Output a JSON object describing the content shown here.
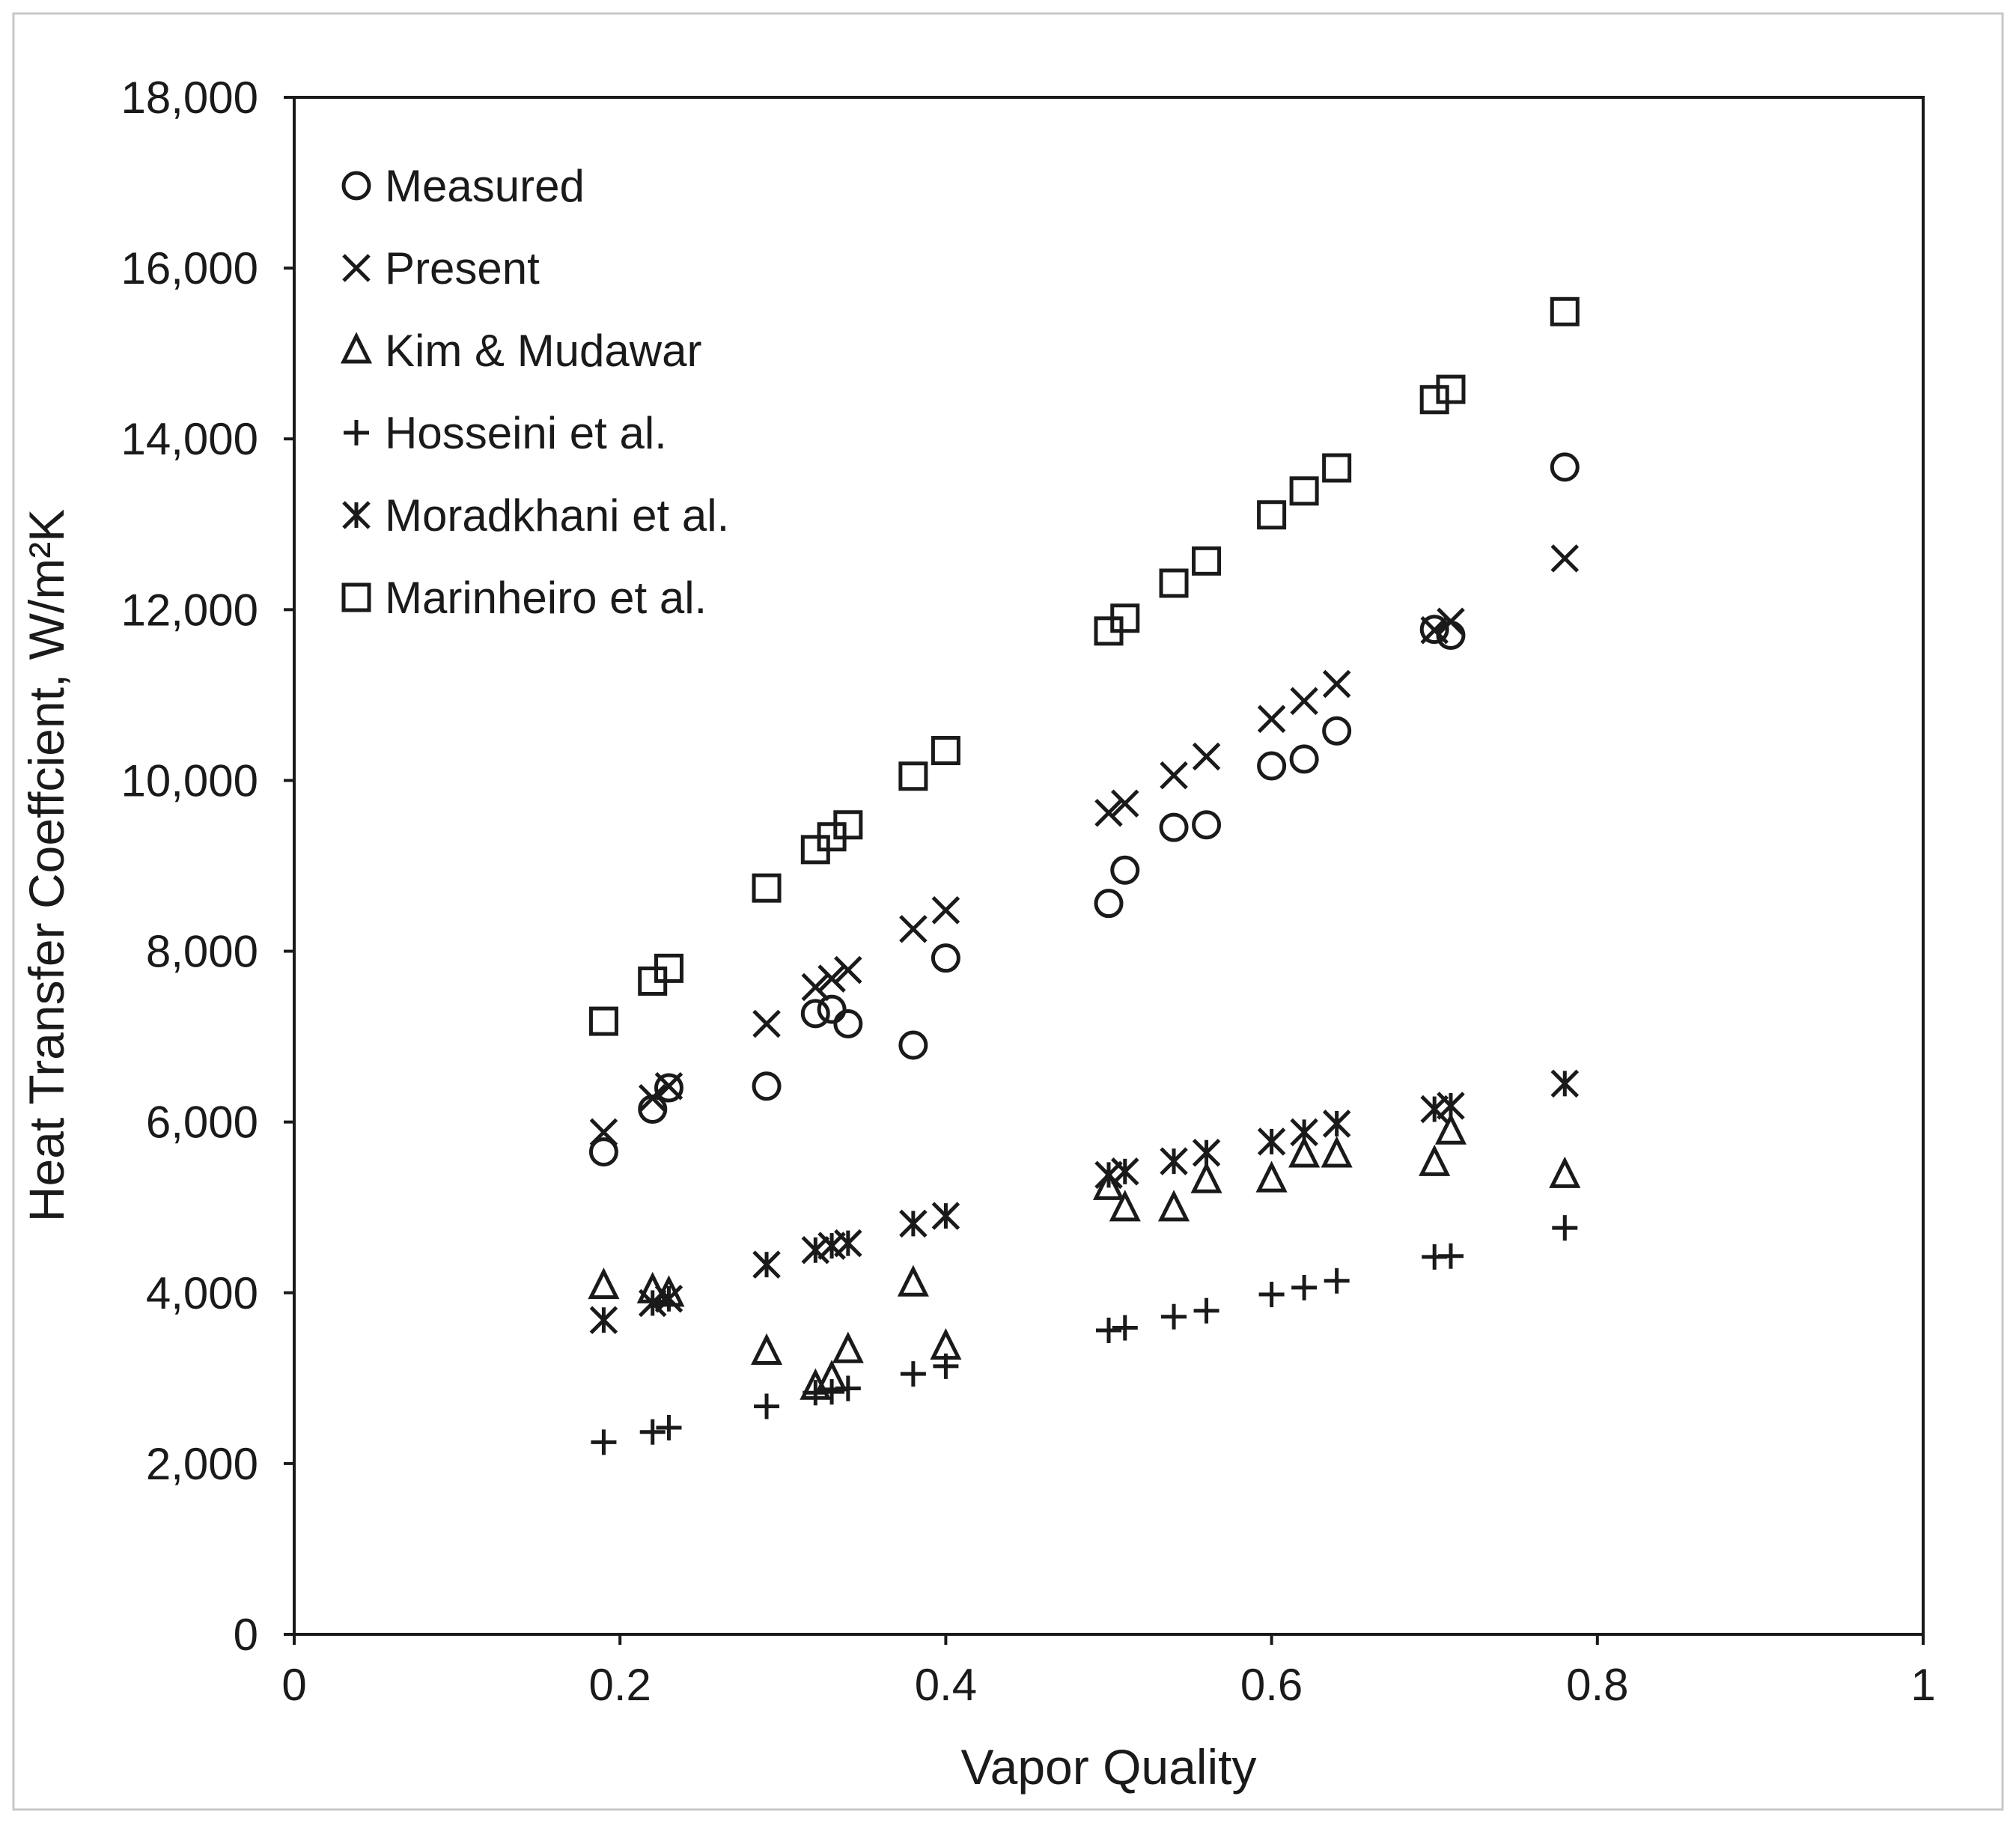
{
  "chart_data": {
    "type": "scatter",
    "xlabel": "Vapor Quality",
    "ylabel": "Heat Transfer Coeffcient, W/m²K",
    "xlim": [
      0,
      1
    ],
    "ylim": [
      0,
      18000
    ],
    "x_ticks": [
      0,
      0.2,
      0.4,
      0.6,
      0.8,
      1
    ],
    "x_tick_labels": [
      "0",
      "0.2",
      "0.4",
      "0.6",
      "0.8",
      "1"
    ],
    "y_ticks": [
      0,
      2000,
      4000,
      6000,
      8000,
      10000,
      12000,
      14000,
      16000,
      18000
    ],
    "y_tick_labels": [
      "0",
      "2,000",
      "4,000",
      "6,000",
      "8,000",
      "10,000",
      "12,000",
      "14,000",
      "16,000",
      "18,000"
    ],
    "grid": false,
    "legend_position": "top-left",
    "x": [
      0.19,
      0.22,
      0.23,
      0.29,
      0.32,
      0.33,
      0.34,
      0.38,
      0.4,
      0.5,
      0.51,
      0.54,
      0.56,
      0.6,
      0.62,
      0.64,
      0.7,
      0.71,
      0.78
    ],
    "series": [
      {
        "name": "Measured",
        "marker": "circle",
        "values": [
          5650,
          6150,
          6400,
          6420,
          7270,
          7320,
          7150,
          6900,
          7920,
          8560,
          8950,
          9450,
          9480,
          10170,
          10250,
          10580,
          11770,
          11700,
          13670
        ]
      },
      {
        "name": "Present",
        "marker": "x",
        "values": [
          5880,
          6280,
          6420,
          7150,
          7580,
          7680,
          7780,
          8260,
          8480,
          9620,
          9730,
          10060,
          10280,
          10720,
          10930,
          11130,
          11760,
          11860,
          12600
        ]
      },
      {
        "name": "Kim & Mudawar",
        "marker": "triangle",
        "values": [
          4080,
          4030,
          3990,
          3310,
          2900,
          3000,
          3330,
          4110,
          3370,
          5240,
          4990,
          4990,
          5320,
          5330,
          5620,
          5620,
          5520,
          5890,
          5380
        ]
      },
      {
        "name": "Hosseini et al.",
        "marker": "plus",
        "values": [
          2250,
          2370,
          2420,
          2670,
          2830,
          2840,
          2880,
          3050,
          3140,
          3560,
          3590,
          3720,
          3790,
          3980,
          4060,
          4140,
          4420,
          4430,
          4760
        ]
      },
      {
        "name": "Moradkhani et al.",
        "marker": "asterisk",
        "values": [
          3680,
          3880,
          3930,
          4330,
          4500,
          4550,
          4580,
          4810,
          4900,
          5380,
          5420,
          5540,
          5640,
          5770,
          5880,
          5980,
          6150,
          6190,
          6450
        ]
      },
      {
        "name": "Marinheiro et al.",
        "marker": "square",
        "values": [
          7180,
          7650,
          7800,
          8740,
          9190,
          9340,
          9480,
          10050,
          10350,
          11750,
          11900,
          12310,
          12570,
          13110,
          13390,
          13660,
          14460,
          14580,
          15490
        ]
      }
    ]
  }
}
